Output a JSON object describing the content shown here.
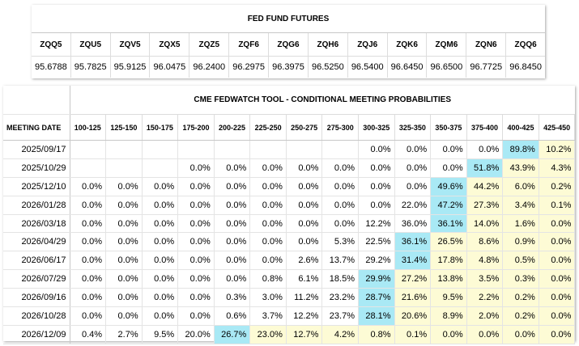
{
  "futures": {
    "title": "FED FUND FUTURES",
    "contracts": [
      "ZQQ5",
      "ZQU5",
      "ZQV5",
      "ZQX5",
      "ZQZ5",
      "ZQF6",
      "ZQG6",
      "ZQH6",
      "ZQJ6",
      "ZQK6",
      "ZQM6",
      "ZQN6",
      "ZQQ6"
    ],
    "prices": [
      "95.6788",
      "95.7825",
      "95.9125",
      "96.0475",
      "96.2400",
      "96.2975",
      "96.3975",
      "96.5250",
      "96.5400",
      "96.6450",
      "96.6500",
      "96.7725",
      "96.8450"
    ]
  },
  "fedwatch": {
    "title": "CME FEDWATCH TOOL - CONDITIONAL MEETING PROBABILITIES",
    "date_header": "MEETING DATE",
    "ranges": [
      "100-125",
      "125-150",
      "150-175",
      "175-200",
      "200-225",
      "225-250",
      "250-275",
      "275-300",
      "300-325",
      "325-350",
      "350-375",
      "375-400",
      "400-425",
      "425-450"
    ],
    "highlight_color": "#a9e9f5",
    "shade_color": "#fdfbd5",
    "rows": [
      {
        "date": "2025/09/17",
        "max_index": 12,
        "values": [
          "",
          "",
          "",
          "",
          "",
          "",
          "",
          "",
          "0.0%",
          "0.0%",
          "0.0%",
          "0.0%",
          "89.8%",
          "10.2%"
        ]
      },
      {
        "date": "2025/10/29",
        "max_index": 11,
        "values": [
          "",
          "",
          "",
          "0.0%",
          "0.0%",
          "0.0%",
          "0.0%",
          "0.0%",
          "0.0%",
          "0.0%",
          "0.0%",
          "51.8%",
          "43.9%",
          "4.3%"
        ]
      },
      {
        "date": "2025/12/10",
        "max_index": 10,
        "values": [
          "0.0%",
          "0.0%",
          "0.0%",
          "0.0%",
          "0.0%",
          "0.0%",
          "0.0%",
          "0.0%",
          "0.0%",
          "0.0%",
          "49.6%",
          "44.2%",
          "6.0%",
          "0.2%"
        ]
      },
      {
        "date": "2026/01/28",
        "max_index": 10,
        "values": [
          "0.0%",
          "0.0%",
          "0.0%",
          "0.0%",
          "0.0%",
          "0.0%",
          "0.0%",
          "0.0%",
          "0.0%",
          "22.0%",
          "47.2%",
          "27.3%",
          "3.4%",
          "0.1%"
        ]
      },
      {
        "date": "2026/03/18",
        "max_index": 10,
        "values": [
          "0.0%",
          "0.0%",
          "0.0%",
          "0.0%",
          "0.0%",
          "0.0%",
          "0.0%",
          "0.0%",
          "12.2%",
          "36.0%",
          "36.1%",
          "14.0%",
          "1.6%",
          "0.0%"
        ]
      },
      {
        "date": "2026/04/29",
        "max_index": 9,
        "values": [
          "0.0%",
          "0.0%",
          "0.0%",
          "0.0%",
          "0.0%",
          "0.0%",
          "0.0%",
          "5.3%",
          "22.5%",
          "36.1%",
          "26.5%",
          "8.6%",
          "0.9%",
          "0.0%"
        ]
      },
      {
        "date": "2026/06/17",
        "max_index": 9,
        "values": [
          "0.0%",
          "0.0%",
          "0.0%",
          "0.0%",
          "0.0%",
          "0.0%",
          "2.6%",
          "13.7%",
          "29.2%",
          "31.4%",
          "17.8%",
          "4.8%",
          "0.5%",
          "0.0%"
        ]
      },
      {
        "date": "2026/07/29",
        "max_index": 8,
        "values": [
          "0.0%",
          "0.0%",
          "0.0%",
          "0.0%",
          "0.0%",
          "0.8%",
          "6.1%",
          "18.5%",
          "29.9%",
          "27.2%",
          "13.8%",
          "3.5%",
          "0.3%",
          "0.0%"
        ]
      },
      {
        "date": "2026/09/16",
        "max_index": 8,
        "values": [
          "0.0%",
          "0.0%",
          "0.0%",
          "0.0%",
          "0.3%",
          "3.0%",
          "11.2%",
          "23.2%",
          "28.7%",
          "21.6%",
          "9.5%",
          "2.2%",
          "0.2%",
          "0.0%"
        ]
      },
      {
        "date": "2026/10/28",
        "max_index": 8,
        "values": [
          "0.0%",
          "0.0%",
          "0.0%",
          "0.0%",
          "0.6%",
          "3.7%",
          "12.2%",
          "23.7%",
          "28.1%",
          "20.6%",
          "8.9%",
          "2.0%",
          "0.2%",
          "0.0%"
        ]
      },
      {
        "date": "2026/12/09",
        "max_index": 4,
        "values": [
          "0.4%",
          "2.7%",
          "9.5%",
          "20.0%",
          "26.7%",
          "23.0%",
          "12.7%",
          "4.2%",
          "0.8%",
          "0.1%",
          "0.0%",
          "0.0%",
          "0.0%",
          "0.0%"
        ]
      }
    ]
  }
}
